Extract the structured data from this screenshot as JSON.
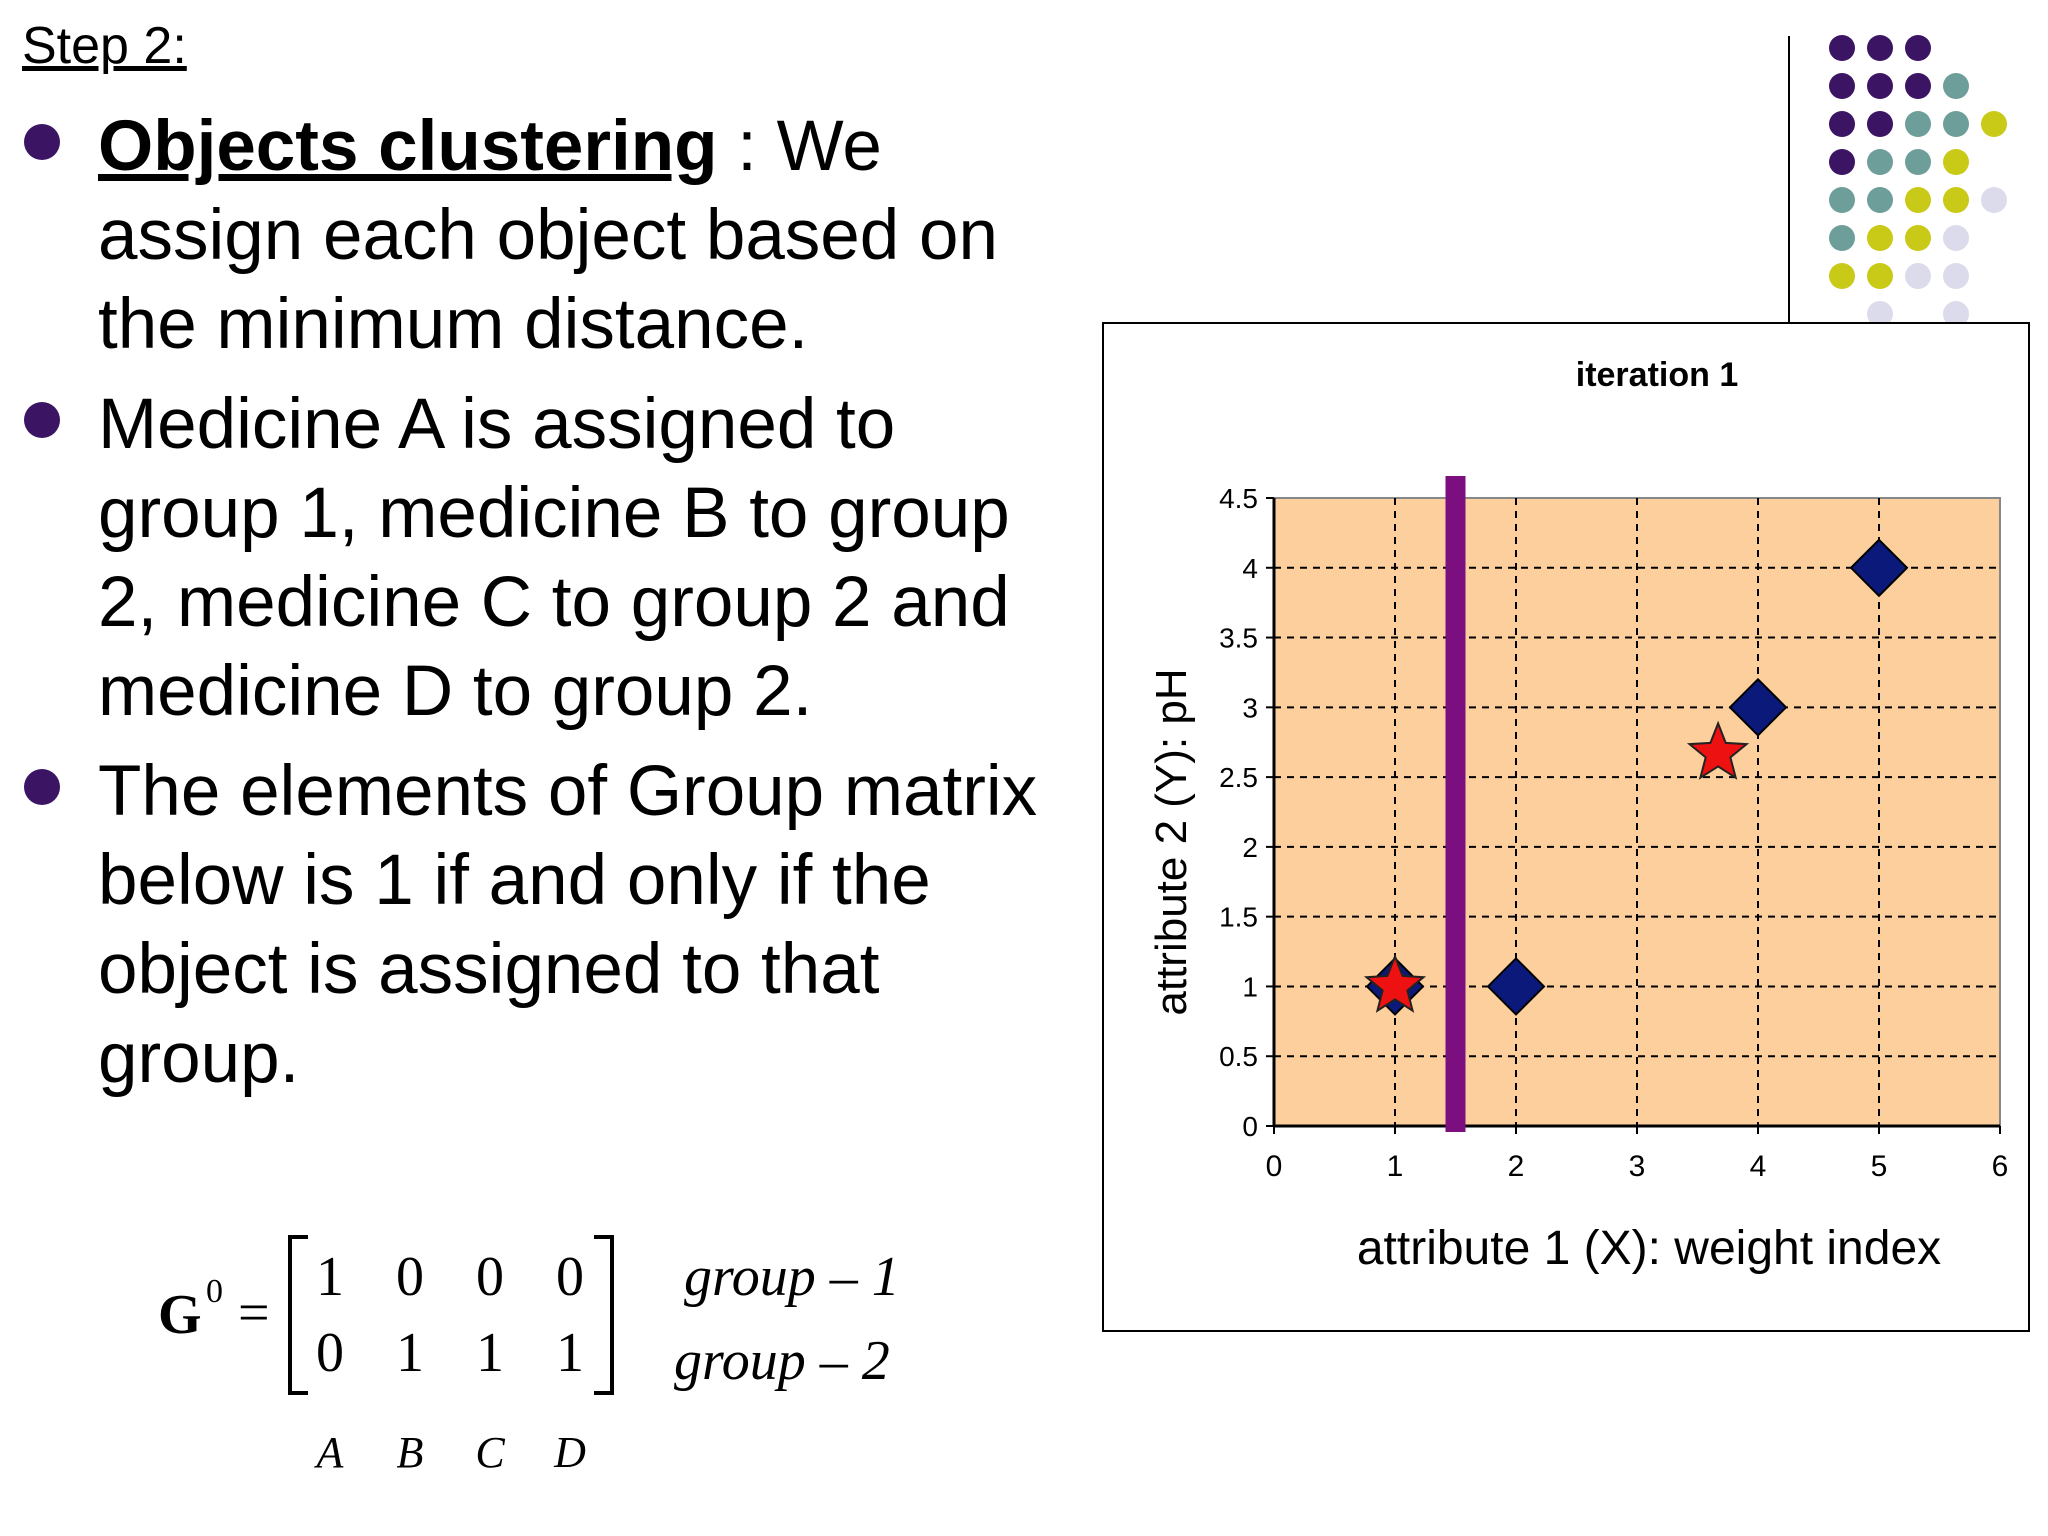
{
  "slide": {
    "step_title": "Step 2:",
    "bullets": [
      {
        "lead": "Objects clustering",
        "text": " : We assign each object  based on the minimum distance."
      },
      {
        "lead": "",
        "text": "Medicine A is assigned to group 1, medicine B to group 2, medicine C to group 2 and medicine D to group 2."
      },
      {
        "lead": "",
        "text": "The elements of Group matrix below is 1 if and only if the object is assigned to that group."
      }
    ]
  },
  "matrix": {
    "symbol": "G",
    "superscript": "0",
    "equals": "=",
    "rows": [
      {
        "values": [
          "1",
          "0",
          "0",
          "0"
        ],
        "label": "group – 1"
      },
      {
        "values": [
          "0",
          "1",
          "1",
          "1"
        ],
        "label": "group – 2"
      }
    ],
    "columns": [
      "A",
      "B",
      "C",
      "D"
    ]
  },
  "colors": {
    "bullet": "#3b1463",
    "plot_background": "#fccf9c",
    "diamond": "#0b1a7a",
    "star": "#ee1111",
    "separator": "#7b0f80",
    "dots": [
      "#3b1463",
      "#6e9e9a",
      "#c9c917",
      "#dcdbec"
    ]
  },
  "chart_data": {
    "type": "scatter",
    "title": "iteration 1",
    "xlabel": "attribute 1 (X): weight index",
    "ylabel": "attribute 2 (Y): pH",
    "xlim": [
      0,
      6
    ],
    "ylim": [
      0,
      4.5
    ],
    "x_ticks": [
      "0",
      "1",
      "2",
      "3",
      "4",
      "5",
      "6"
    ],
    "y_ticks": [
      "0",
      "0.5",
      "1",
      "1.5",
      "2",
      "2.5",
      "3",
      "3.5",
      "4",
      "4.5"
    ],
    "grid": true,
    "legend": "none",
    "series": [
      {
        "marker": "diamond",
        "points": [
          [
            1,
            1
          ],
          [
            2,
            1
          ],
          [
            4,
            3
          ],
          [
            5,
            4
          ]
        ]
      },
      {
        "marker": "star",
        "points": [
          [
            1,
            1
          ],
          [
            3.67,
            2.67
          ]
        ]
      }
    ],
    "separator": {
      "x": 1.5
    }
  }
}
